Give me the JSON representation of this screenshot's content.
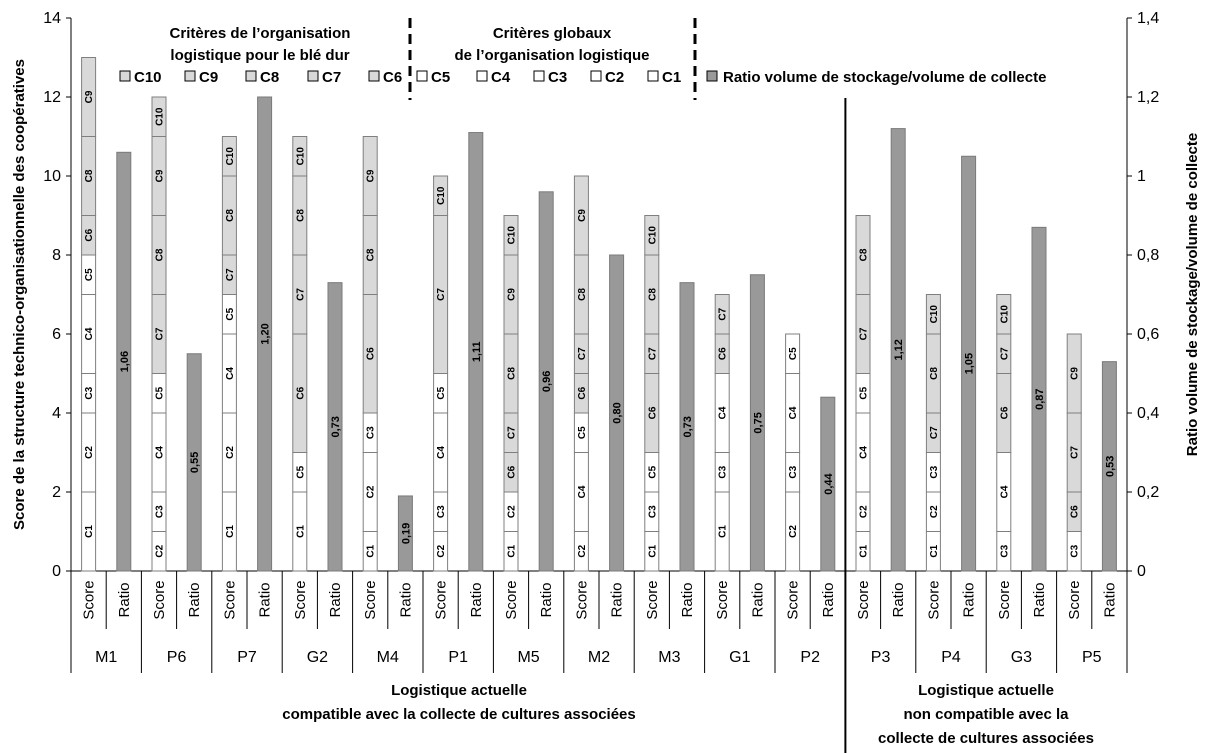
{
  "chart_data": {
    "type": "bar",
    "y_left": {
      "label": "Score de la structure technico-organisationnelle des coopératives",
      "range": [
        0,
        14
      ],
      "ticks": [
        "0",
        "2",
        "4",
        "6",
        "8",
        "10",
        "12",
        "14"
      ]
    },
    "y_right": {
      "label": "Ratio volume de stockage/volume de collecte",
      "range": [
        0,
        1.4
      ],
      "ticks": [
        "0",
        "0,2",
        "0,4",
        "0,6",
        "0,8",
        "1",
        "1,2",
        "1,4"
      ]
    },
    "bar_labels": {
      "score": "Score",
      "ratio": "Ratio"
    },
    "legend": {
      "group_wheat": "Critères de l’organisation logistique pour le blé dur",
      "group_global": "Critères globaux de l’organisation logistique",
      "wheat_criteria": [
        "C10",
        "C9",
        "C8",
        "C7",
        "C6"
      ],
      "global_criteria": [
        "C5",
        "C4",
        "C3",
        "C2",
        "C1"
      ],
      "ratio": "Ratio volume de stockage/volume de collecte"
    },
    "colors": {
      "wheat_criteria": "#d9d9d9",
      "global_criteria": "#ffffff",
      "ratio": "#999999",
      "edge": "#7f7f7f"
    },
    "group_labels": {
      "compatible": "Logistique actuelle compatible avec la collecte de cultures associées",
      "non_compatible": "Logistique actuelle non compatible avec la collecte de cultures associées"
    },
    "cooperatives": [
      {
        "name": "M1",
        "score_segments": [
          [
            "C1",
            2
          ],
          [
            "C2",
            2
          ],
          [
            "C3",
            1
          ],
          [
            "C4",
            2
          ],
          [
            "C5",
            1
          ],
          [
            "C6",
            1
          ],
          [
            "C8",
            2
          ],
          [
            "C9",
            2
          ]
        ],
        "ratio": 1.06,
        "ratio_label": "1,06"
      },
      {
        "name": "P6",
        "score_segments": [
          [
            "C2",
            1
          ],
          [
            "C3",
            1
          ],
          [
            "C4",
            2
          ],
          [
            "C5",
            1
          ],
          [
            "C7",
            2
          ],
          [
            "C8",
            2
          ],
          [
            "C9",
            2
          ],
          [
            "C10",
            1
          ]
        ],
        "ratio": 0.55,
        "ratio_label": "0,55"
      },
      {
        "name": "P7",
        "score_segments": [
          [
            "C1",
            2
          ],
          [
            "C2",
            2
          ],
          [
            "C4",
            2
          ],
          [
            "C5",
            1
          ],
          [
            "C7",
            1
          ],
          [
            "C8",
            2
          ],
          [
            "C10",
            1
          ]
        ],
        "ratio": 1.2,
        "ratio_label": "1,20"
      },
      {
        "name": "G2",
        "score_segments": [
          [
            "C1",
            2
          ],
          [
            "C5",
            1
          ],
          [
            "C6",
            3
          ],
          [
            "C7",
            2
          ],
          [
            "C8",
            2
          ],
          [
            "C10",
            1
          ]
        ],
        "ratio": 0.73,
        "ratio_label": "0,73"
      },
      {
        "name": "M4",
        "score_segments": [
          [
            "C1",
            1
          ],
          [
            "C2",
            2
          ],
          [
            "C3",
            1
          ],
          [
            "C6",
            3
          ],
          [
            "C8",
            2
          ],
          [
            "C9",
            2
          ]
        ],
        "ratio": 0.19,
        "ratio_label": "0,19"
      },
      {
        "name": "P1",
        "score_segments": [
          [
            "C2",
            1
          ],
          [
            "C3",
            1
          ],
          [
            "C4",
            2
          ],
          [
            "C5",
            1
          ],
          [
            "C7",
            4
          ],
          [
            "C10",
            1
          ]
        ],
        "ratio": 1.11,
        "ratio_label": "1,11"
      },
      {
        "name": "M5",
        "score_segments": [
          [
            "C1",
            1
          ],
          [
            "C2",
            1
          ],
          [
            "C6",
            1
          ],
          [
            "C7",
            1
          ],
          [
            "C8",
            2
          ],
          [
            "C9",
            2
          ],
          [
            "C10",
            1
          ]
        ],
        "ratio": 0.96,
        "ratio_label": "0,96"
      },
      {
        "name": "M2",
        "score_segments": [
          [
            "C2",
            1
          ],
          [
            "C4",
            2
          ],
          [
            "C5",
            1
          ],
          [
            "C6",
            1
          ],
          [
            "C7",
            1
          ],
          [
            "C8",
            2
          ],
          [
            "C9",
            2
          ]
        ],
        "ratio": 0.8,
        "ratio_label": "0,80"
      },
      {
        "name": "M3",
        "score_segments": [
          [
            "C1",
            1
          ],
          [
            "C3",
            1
          ],
          [
            "C5",
            1
          ],
          [
            "C6",
            2
          ],
          [
            "C7",
            1
          ],
          [
            "C8",
            2
          ],
          [
            "C10",
            1
          ]
        ],
        "ratio": 0.73,
        "ratio_label": "0,73"
      },
      {
        "name": "G1",
        "score_segments": [
          [
            "C1",
            2
          ],
          [
            "C3",
            1
          ],
          [
            "C4",
            2
          ],
          [
            "C6",
            1
          ],
          [
            "C7",
            1
          ]
        ],
        "ratio": 0.75,
        "ratio_label": "0,75"
      },
      {
        "name": "P2",
        "score_segments": [
          [
            "C2",
            2
          ],
          [
            "C3",
            1
          ],
          [
            "C4",
            2
          ],
          [
            "C5",
            1
          ]
        ],
        "ratio": 0.44,
        "ratio_label": "0,44"
      },
      {
        "name": "P3",
        "score_segments": [
          [
            "C1",
            1
          ],
          [
            "C2",
            1
          ],
          [
            "C4",
            2
          ],
          [
            "C5",
            1
          ],
          [
            "C7",
            2
          ],
          [
            "C8",
            2
          ]
        ],
        "ratio": 1.12,
        "ratio_label": "1,12"
      },
      {
        "name": "P4",
        "score_segments": [
          [
            "C1",
            1
          ],
          [
            "C2",
            1
          ],
          [
            "C3",
            1
          ],
          [
            "C7",
            1
          ],
          [
            "C8",
            2
          ],
          [
            "C10",
            1
          ]
        ],
        "ratio": 1.05,
        "ratio_label": "1,05"
      },
      {
        "name": "G3",
        "score_segments": [
          [
            "C3",
            1
          ],
          [
            "C4",
            2
          ],
          [
            "C6",
            2
          ],
          [
            "C7",
            1
          ],
          [
            "C10",
            1
          ]
        ],
        "ratio": 0.87,
        "ratio_label": "0,87"
      },
      {
        "name": "P5",
        "score_segments": [
          [
            "C3",
            1
          ],
          [
            "C6",
            1
          ],
          [
            "C7",
            2
          ],
          [
            "C9",
            2
          ]
        ],
        "ratio": 0.53,
        "ratio_label": "0,53"
      }
    ]
  }
}
